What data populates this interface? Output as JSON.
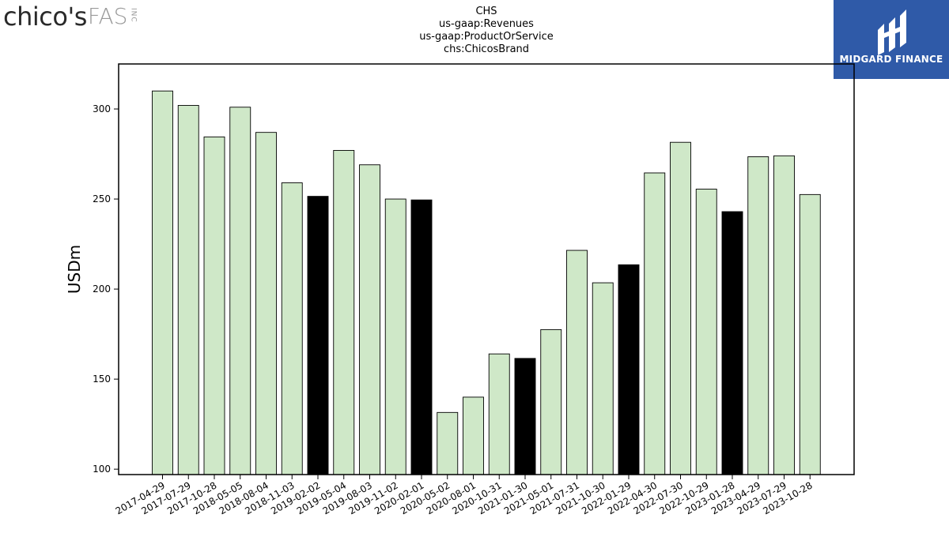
{
  "logos": {
    "left_brand": "chico's",
    "left_suffix": "FAS",
    "left_inc": "INC",
    "right_name": "MIDGARD FINANCE"
  },
  "title_lines": [
    "CHS",
    "us-gaap:Revenues",
    "us-gaap:ProductOrService",
    "chs:ChicosBrand"
  ],
  "colors": {
    "bar_normal": "#cfe8c8",
    "bar_highlight": "#000000",
    "bar_edge": "#000000",
    "right_logo_bg": "#2f5aa8"
  },
  "chart_data": {
    "type": "bar",
    "ylabel": "USDm",
    "xlabel": "",
    "ylim": [
      97,
      325
    ],
    "yticks": [
      100,
      150,
      200,
      250,
      300
    ],
    "grid": false,
    "categories": [
      "2017-04-29",
      "2017-07-29",
      "2017-10-28",
      "2018-05-05",
      "2018-08-04",
      "2018-11-03",
      "2019-02-02",
      "2019-05-04",
      "2019-08-03",
      "2019-11-02",
      "2020-02-01",
      "2020-05-02",
      "2020-08-01",
      "2020-10-31",
      "2021-01-30",
      "2021-05-01",
      "2021-07-31",
      "2021-10-30",
      "2022-01-29",
      "2022-04-30",
      "2022-07-30",
      "2022-10-29",
      "2023-01-28",
      "2023-04-29",
      "2023-07-29",
      "2023-10-28"
    ],
    "values": [
      310,
      302,
      284.5,
      301,
      287,
      259,
      251.5,
      277,
      269,
      250,
      249.5,
      131.5,
      140,
      164,
      161.5,
      177.5,
      221.5,
      203.5,
      213.5,
      264.5,
      281.5,
      255.5,
      243,
      273.5,
      274,
      252.5
    ],
    "highlight": [
      false,
      false,
      false,
      false,
      false,
      false,
      true,
      false,
      false,
      false,
      true,
      false,
      false,
      false,
      true,
      false,
      false,
      false,
      true,
      false,
      false,
      false,
      true,
      false,
      false,
      false
    ]
  }
}
